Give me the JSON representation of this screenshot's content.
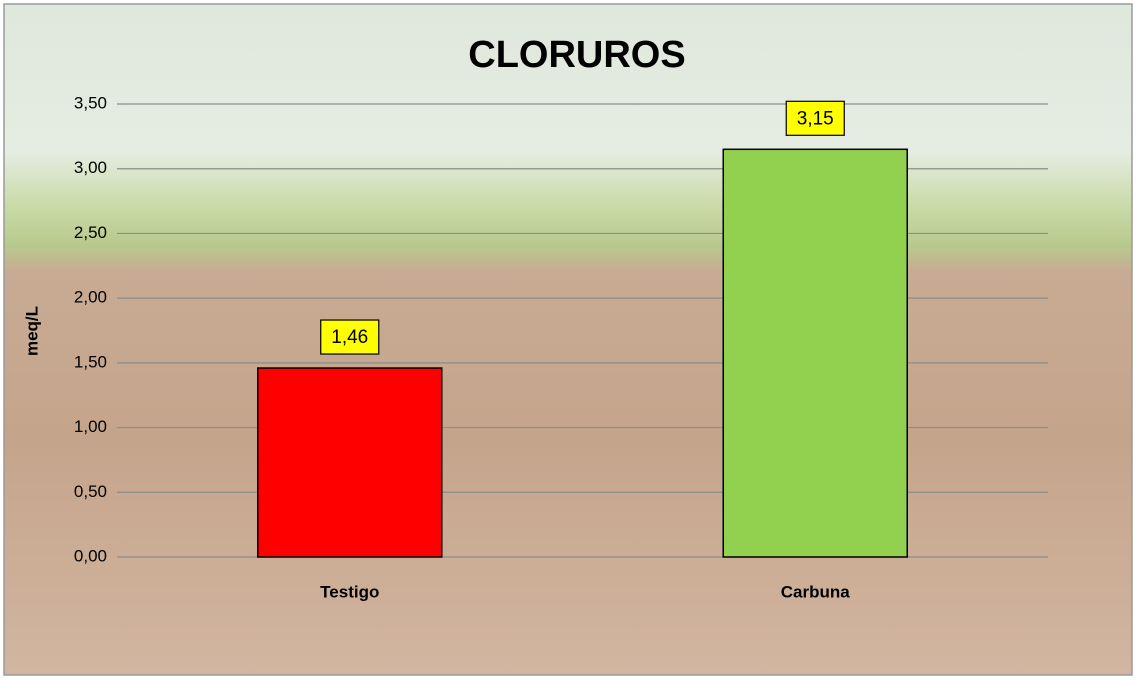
{
  "chart_data": {
    "type": "bar",
    "title": "CLORUROS",
    "y_label": "meq/L",
    "categories": [
      "Testigo",
      "Carbuna"
    ],
    "values": [
      1.46,
      3.15
    ],
    "value_labels": [
      "1,46",
      "3,15"
    ],
    "colors": [
      "#ff0000",
      "#92d050"
    ],
    "ylim": [
      0,
      3.5
    ],
    "yticks": [
      {
        "value": 0,
        "label": "0,00"
      },
      {
        "value": 0.5,
        "label": "0,50"
      },
      {
        "value": 1,
        "label": "1,00"
      },
      {
        "value": 1.5,
        "label": "1,50"
      },
      {
        "value": 2,
        "label": "2,00"
      },
      {
        "value": 2.5,
        "label": "2,50"
      },
      {
        "value": 3,
        "label": "3,00"
      },
      {
        "value": 3.5,
        "label": "3,50"
      }
    ],
    "grid": true
  }
}
